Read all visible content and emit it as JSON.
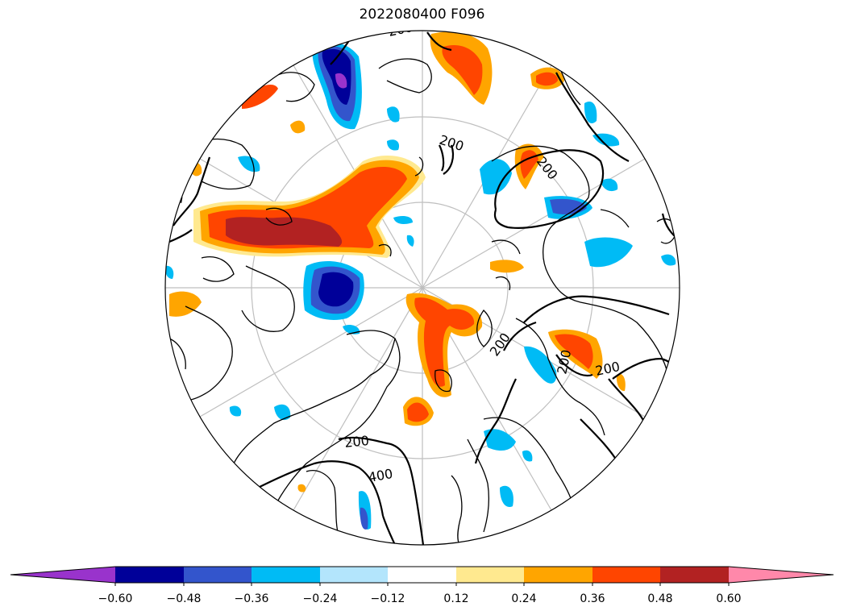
{
  "title": "2022080400 F096",
  "contour_labels": [
    "200",
    "200",
    "200",
    "200",
    "200",
    "200",
    "200",
    "400",
    "200"
  ],
  "colorbar": {
    "extend_low_color": "#9933cc",
    "extend_high_color": "#ff88aa",
    "bins": [
      {
        "color": "#9933cc"
      },
      {
        "color": "#000099"
      },
      {
        "color": "#3355cc"
      },
      {
        "color": "#00bbf5"
      },
      {
        "color": "#b3e5fc"
      },
      {
        "color": "#ffffff"
      },
      {
        "color": "#ffe98f"
      },
      {
        "color": "#ffa500"
      },
      {
        "color": "#ff4500"
      },
      {
        "color": "#b22222"
      },
      {
        "color": "#ff88aa"
      }
    ],
    "tick_labels": [
      "−0.60",
      "−0.48",
      "−0.36",
      "−0.24",
      "−0.12",
      "0.12",
      "0.24",
      "0.36",
      "0.48",
      "0.60"
    ]
  },
  "colors": {
    "neg_strong": "#000099",
    "neg_mid": "#3355cc",
    "neg_light": "#00bbf5",
    "neg_purple": "#9933cc",
    "pos_light": "#ffa500",
    "pos_mid": "#ff4500",
    "pos_strong": "#b22222",
    "pos_pale": "#ffe98f"
  }
}
